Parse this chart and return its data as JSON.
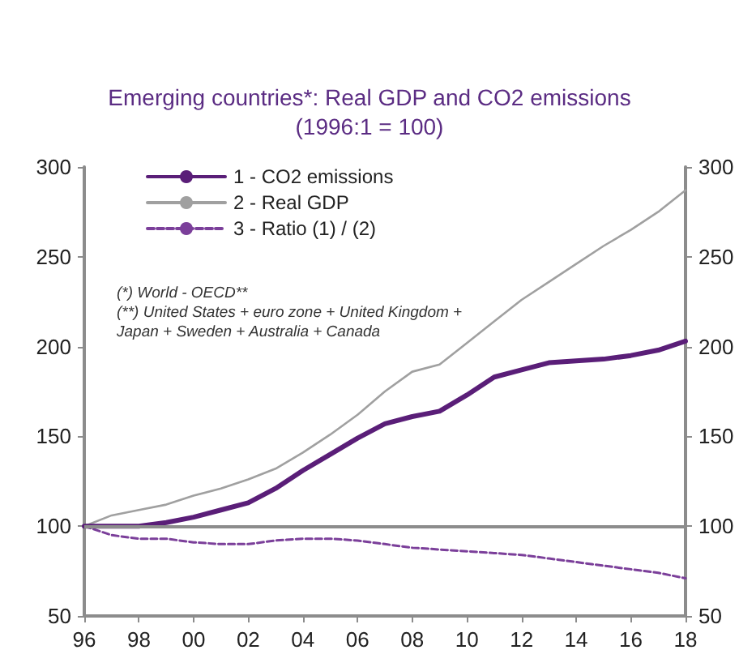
{
  "chart_data": {
    "type": "line",
    "title": "Emerging countries*: Real GDP and CO2 emissions\n(1996:1 = 100)",
    "x": [
      1996,
      1997,
      1998,
      1999,
      2000,
      2001,
      2002,
      2003,
      2004,
      2005,
      2006,
      2007,
      2008,
      2009,
      2010,
      2011,
      2012,
      2013,
      2014,
      2015,
      2016,
      2017,
      2018
    ],
    "series": [
      {
        "name": "1 - CO2 emissions",
        "color": "#5a1e78",
        "values": [
          100,
          100,
          100,
          102,
          105,
          109,
          113,
          121,
          131,
          140,
          149,
          157,
          161,
          164,
          173,
          183,
          187,
          191,
          192,
          193,
          195,
          198,
          203
        ]
      },
      {
        "name": "2 - Real GDP",
        "color": "#a0a0a0",
        "values": [
          100,
          106,
          109,
          112,
          117,
          121,
          126,
          132,
          141,
          151,
          162,
          175,
          186,
          190,
          202,
          214,
          226,
          236,
          246,
          256,
          265,
          275,
          287
        ]
      },
      {
        "name": "3 - Ratio (1) / (2)",
        "color": "#7b3f9a",
        "line_style": "dashed",
        "values": [
          100,
          95,
          93,
          93,
          91,
          90,
          90,
          92,
          93,
          93,
          92,
          90,
          88,
          87,
          86,
          85,
          84,
          82,
          80,
          78,
          76,
          74,
          71
        ]
      }
    ],
    "xlim": [
      1996,
      2018
    ],
    "xticks": [
      {
        "value": 1996,
        "label": "96"
      },
      {
        "value": 1998,
        "label": "98"
      },
      {
        "value": 2000,
        "label": "00"
      },
      {
        "value": 2002,
        "label": "02"
      },
      {
        "value": 2004,
        "label": "04"
      },
      {
        "value": 2006,
        "label": "06"
      },
      {
        "value": 2008,
        "label": "08"
      },
      {
        "value": 2010,
        "label": "10"
      },
      {
        "value": 2012,
        "label": "12"
      },
      {
        "value": 2014,
        "label": "14"
      },
      {
        "value": 2016,
        "label": "16"
      },
      {
        "value": 2018,
        "label": "18"
      }
    ],
    "ylim": [
      50,
      300
    ],
    "yticks": [
      50,
      100,
      150,
      200,
      250,
      300
    ],
    "y2lim": [
      50,
      300
    ],
    "y2ticks": [
      50,
      100,
      150,
      200,
      250,
      300
    ],
    "ref_lines": [
      {
        "axis": "y",
        "value": 100,
        "color": "#8c8c8c"
      }
    ],
    "annotations": [
      "(*) World - OECD**\n(**) United States + euro zone + United Kingdom +\nJapan + Sweden + Australia + Canada"
    ],
    "legend": "top left",
    "grid": false,
    "marker": "none",
    "line_style": "solid"
  }
}
